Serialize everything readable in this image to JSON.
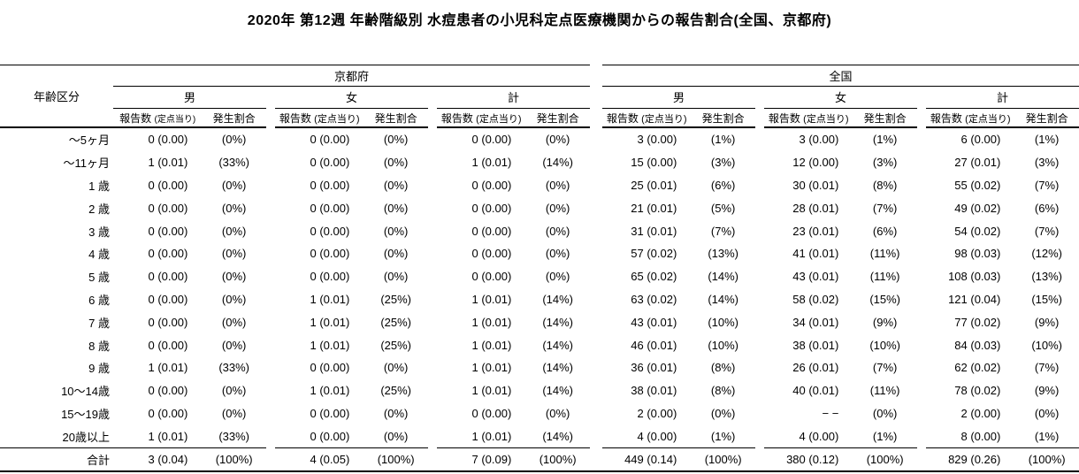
{
  "title": "2020年 第12週 年齢階級別 水痘患者の小児科定点医療機関からの報告割合(全国、京都府)",
  "table": {
    "age_header": "年齢区分",
    "sections": [
      {
        "label": "京都府",
        "groups": [
          "男",
          "女",
          "計"
        ]
      },
      {
        "label": "全国",
        "groups": [
          "男",
          "女",
          "計"
        ]
      }
    ],
    "subheaders": {
      "count_label": "報告数",
      "count_paren": "(定点当り)",
      "ratio_label": "発生割合"
    },
    "rows": [
      {
        "age": "～5ヶ月",
        "cells": [
          [
            "0 (0.00)",
            "(0%)"
          ],
          [
            "0 (0.00)",
            "(0%)"
          ],
          [
            "0 (0.00)",
            "(0%)"
          ],
          [
            "3 (0.00)",
            "(1%)"
          ],
          [
            "3 (0.00)",
            "(1%)"
          ],
          [
            "6 (0.00)",
            "(1%)"
          ]
        ]
      },
      {
        "age": "～11ヶ月",
        "cells": [
          [
            "1 (0.01)",
            "(33%)"
          ],
          [
            "0 (0.00)",
            "(0%)"
          ],
          [
            "1 (0.01)",
            "(14%)"
          ],
          [
            "15 (0.00)",
            "(3%)"
          ],
          [
            "12 (0.00)",
            "(3%)"
          ],
          [
            "27 (0.01)",
            "(3%)"
          ]
        ]
      },
      {
        "age": "1 歳",
        "cells": [
          [
            "0 (0.00)",
            "(0%)"
          ],
          [
            "0 (0.00)",
            "(0%)"
          ],
          [
            "0 (0.00)",
            "(0%)"
          ],
          [
            "25 (0.01)",
            "(6%)"
          ],
          [
            "30 (0.01)",
            "(8%)"
          ],
          [
            "55 (0.02)",
            "(7%)"
          ]
        ]
      },
      {
        "age": "2 歳",
        "cells": [
          [
            "0 (0.00)",
            "(0%)"
          ],
          [
            "0 (0.00)",
            "(0%)"
          ],
          [
            "0 (0.00)",
            "(0%)"
          ],
          [
            "21 (0.01)",
            "(5%)"
          ],
          [
            "28 (0.01)",
            "(7%)"
          ],
          [
            "49 (0.02)",
            "(6%)"
          ]
        ]
      },
      {
        "age": "3 歳",
        "cells": [
          [
            "0 (0.00)",
            "(0%)"
          ],
          [
            "0 (0.00)",
            "(0%)"
          ],
          [
            "0 (0.00)",
            "(0%)"
          ],
          [
            "31 (0.01)",
            "(7%)"
          ],
          [
            "23 (0.01)",
            "(6%)"
          ],
          [
            "54 (0.02)",
            "(7%)"
          ]
        ]
      },
      {
        "age": "4 歳",
        "cells": [
          [
            "0 (0.00)",
            "(0%)"
          ],
          [
            "0 (0.00)",
            "(0%)"
          ],
          [
            "0 (0.00)",
            "(0%)"
          ],
          [
            "57 (0.02)",
            "(13%)"
          ],
          [
            "41 (0.01)",
            "(11%)"
          ],
          [
            "98 (0.03)",
            "(12%)"
          ]
        ]
      },
      {
        "age": "5 歳",
        "cells": [
          [
            "0 (0.00)",
            "(0%)"
          ],
          [
            "0 (0.00)",
            "(0%)"
          ],
          [
            "0 (0.00)",
            "(0%)"
          ],
          [
            "65 (0.02)",
            "(14%)"
          ],
          [
            "43 (0.01)",
            "(11%)"
          ],
          [
            "108 (0.03)",
            "(13%)"
          ]
        ]
      },
      {
        "age": "6 歳",
        "cells": [
          [
            "0 (0.00)",
            "(0%)"
          ],
          [
            "1 (0.01)",
            "(25%)"
          ],
          [
            "1 (0.01)",
            "(14%)"
          ],
          [
            "63 (0.02)",
            "(14%)"
          ],
          [
            "58 (0.02)",
            "(15%)"
          ],
          [
            "121 (0.04)",
            "(15%)"
          ]
        ]
      },
      {
        "age": "7 歳",
        "cells": [
          [
            "0 (0.00)",
            "(0%)"
          ],
          [
            "1 (0.01)",
            "(25%)"
          ],
          [
            "1 (0.01)",
            "(14%)"
          ],
          [
            "43 (0.01)",
            "(10%)"
          ],
          [
            "34 (0.01)",
            "(9%)"
          ],
          [
            "77 (0.02)",
            "(9%)"
          ]
        ]
      },
      {
        "age": "8 歳",
        "cells": [
          [
            "0 (0.00)",
            "(0%)"
          ],
          [
            "1 (0.01)",
            "(25%)"
          ],
          [
            "1 (0.01)",
            "(14%)"
          ],
          [
            "46 (0.01)",
            "(10%)"
          ],
          [
            "38 (0.01)",
            "(10%)"
          ],
          [
            "84 (0.03)",
            "(10%)"
          ]
        ]
      },
      {
        "age": "9 歳",
        "cells": [
          [
            "1 (0.01)",
            "(33%)"
          ],
          [
            "0 (0.00)",
            "(0%)"
          ],
          [
            "1 (0.01)",
            "(14%)"
          ],
          [
            "36 (0.01)",
            "(8%)"
          ],
          [
            "26 (0.01)",
            "(7%)"
          ],
          [
            "62 (0.02)",
            "(7%)"
          ]
        ]
      },
      {
        "age": "10～14歳",
        "cells": [
          [
            "0 (0.00)",
            "(0%)"
          ],
          [
            "1 (0.01)",
            "(25%)"
          ],
          [
            "1 (0.01)",
            "(14%)"
          ],
          [
            "38 (0.01)",
            "(8%)"
          ],
          [
            "40 (0.01)",
            "(11%)"
          ],
          [
            "78 (0.02)",
            "(9%)"
          ]
        ]
      },
      {
        "age": "15～19歳",
        "cells": [
          [
            "0 (0.00)",
            "(0%)"
          ],
          [
            "0 (0.00)",
            "(0%)"
          ],
          [
            "0 (0.00)",
            "(0%)"
          ],
          [
            "2 (0.00)",
            "(0%)"
          ],
          [
            "− −",
            "(0%)"
          ],
          [
            "2 (0.00)",
            "(0%)"
          ]
        ]
      },
      {
        "age": "20歳以上",
        "cells": [
          [
            "1 (0.01)",
            "(33%)"
          ],
          [
            "0 (0.00)",
            "(0%)"
          ],
          [
            "1 (0.01)",
            "(14%)"
          ],
          [
            "4 (0.00)",
            "(1%)"
          ],
          [
            "4 (0.00)",
            "(1%)"
          ],
          [
            "8 (0.00)",
            "(1%)"
          ]
        ]
      }
    ],
    "total_row": {
      "age": "合計",
      "cells": [
        [
          "3 (0.04)",
          "(100%)"
        ],
        [
          "4 (0.05)",
          "(100%)"
        ],
        [
          "7 (0.09)",
          "(100%)"
        ],
        [
          "449 (0.14)",
          "(100%)"
        ],
        [
          "380 (0.12)",
          "(100%)"
        ],
        [
          "829 (0.26)",
          "(100%)"
        ]
      ]
    }
  }
}
